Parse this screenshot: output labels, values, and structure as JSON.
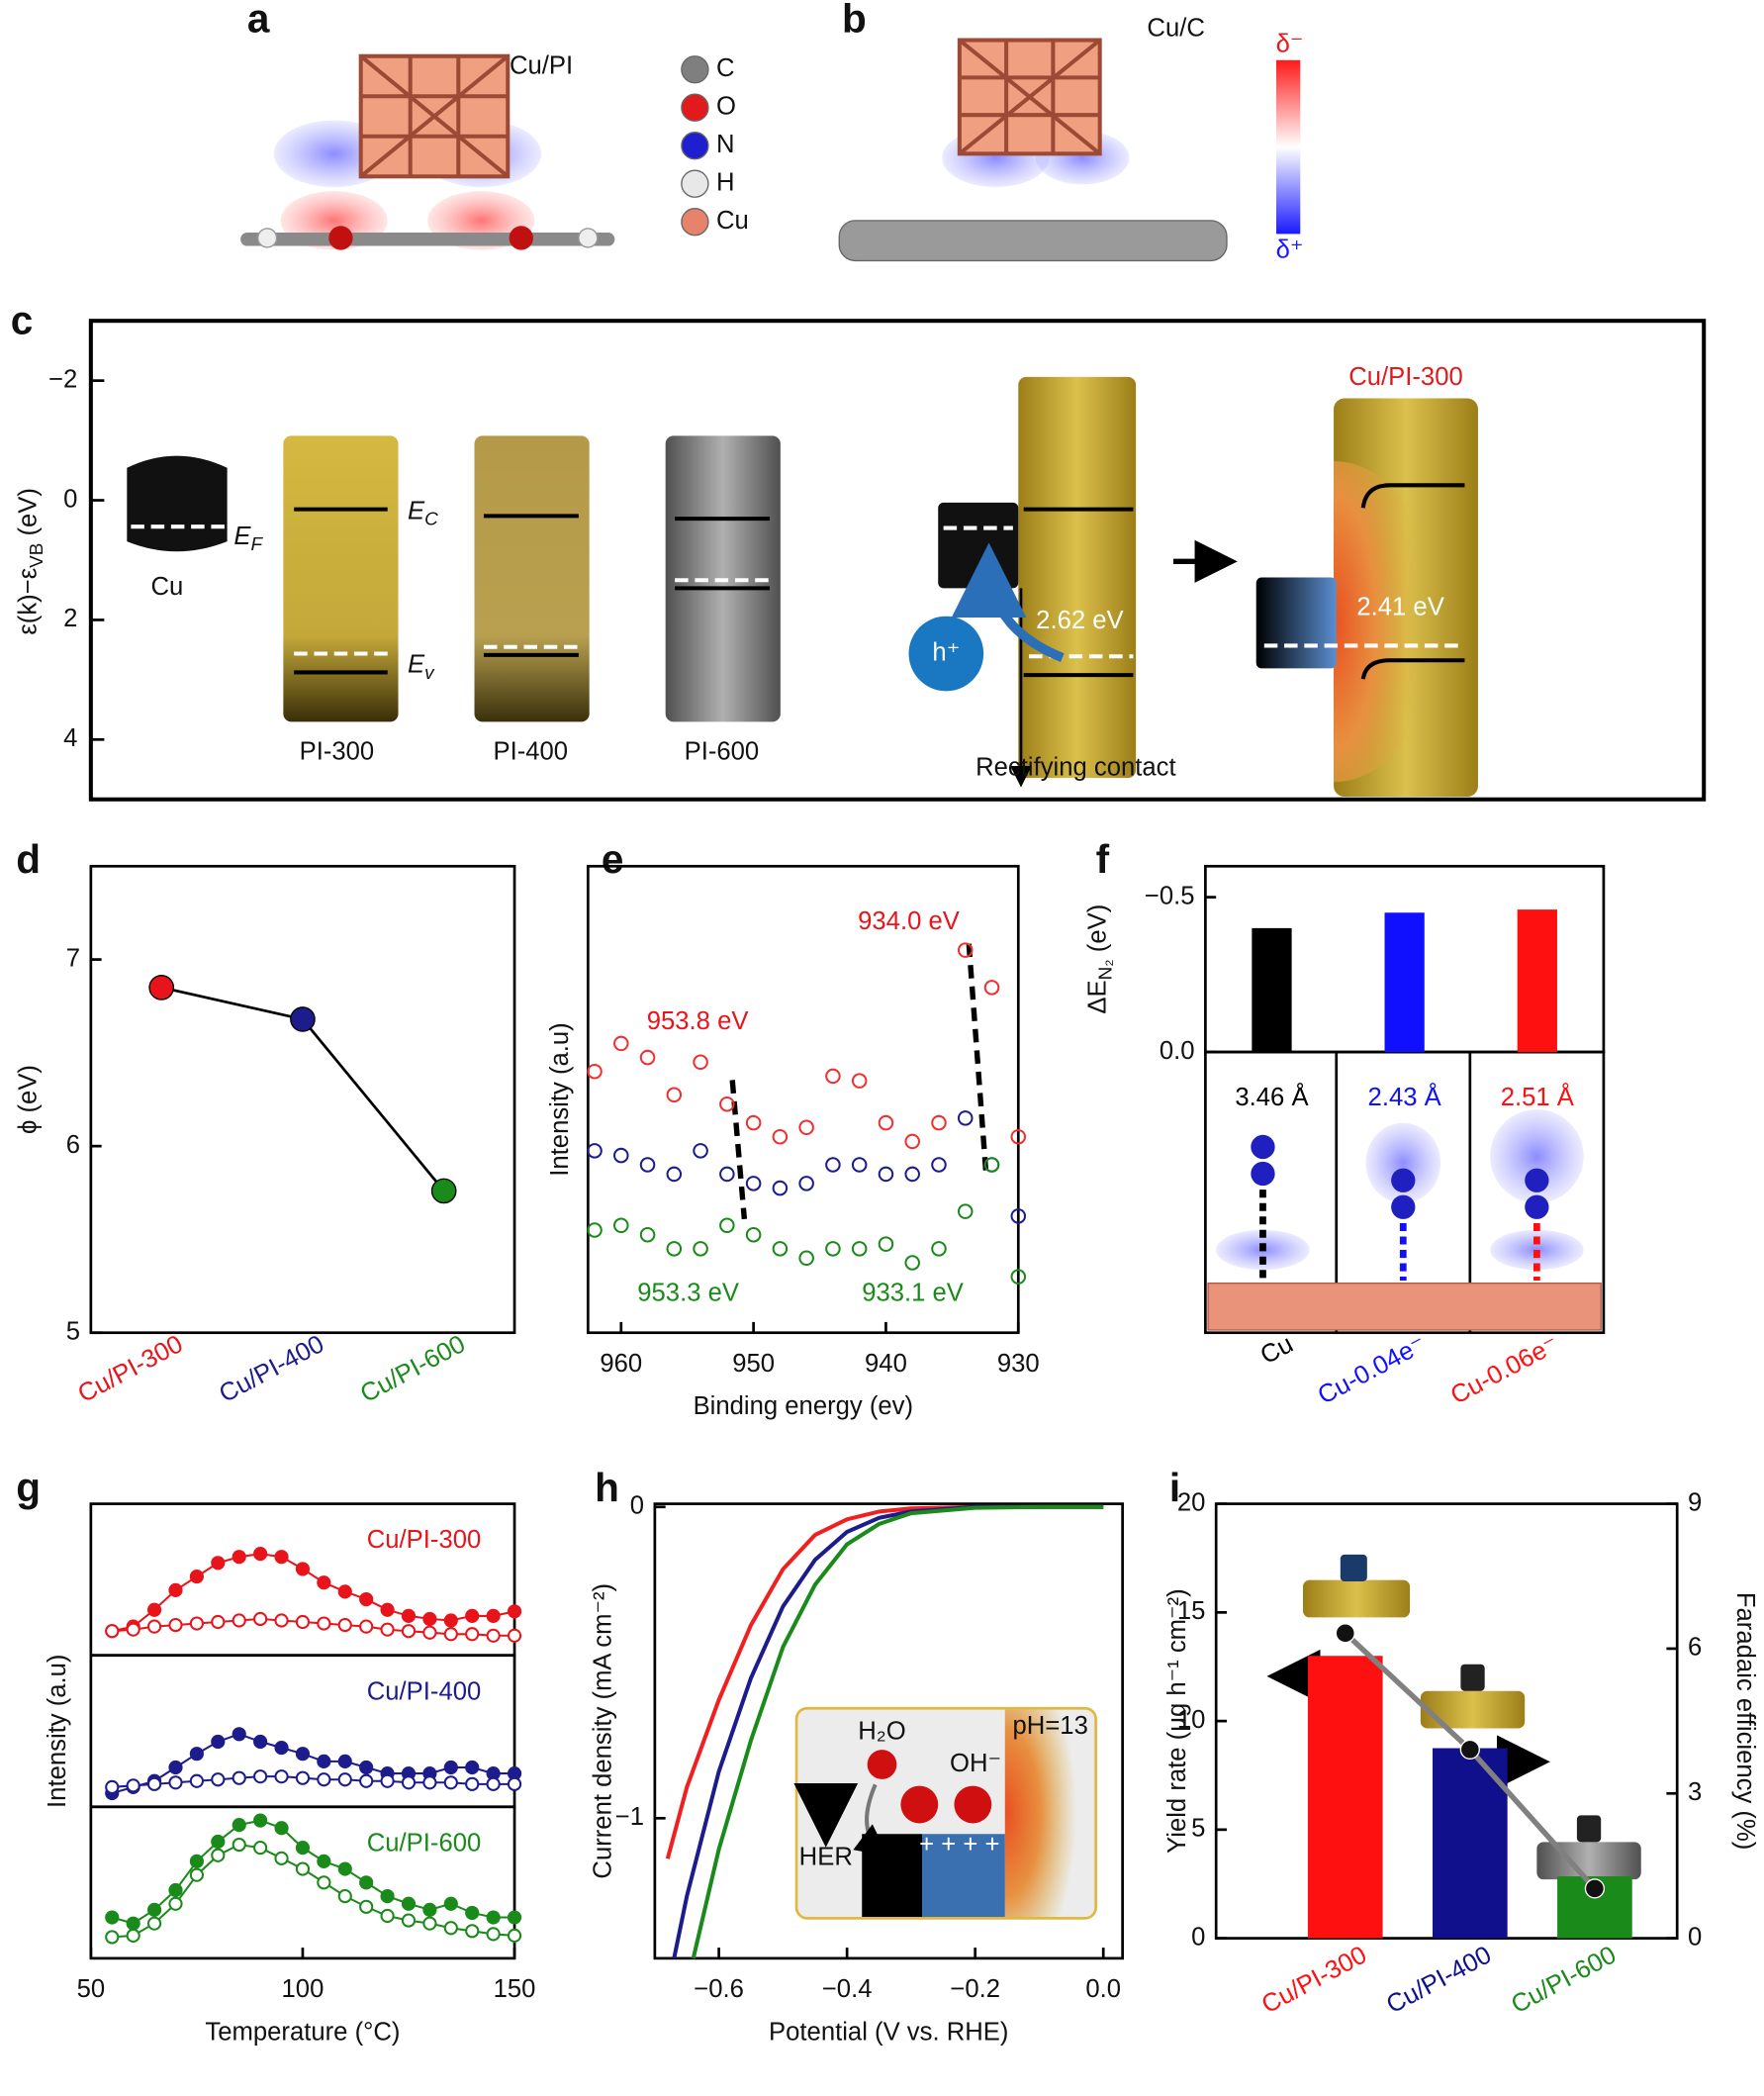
{
  "figure_a": {
    "panel": "a",
    "title": "Cu/PI",
    "legend": [
      {
        "name": "C",
        "color": "#7f7f7f"
      },
      {
        "name": "O",
        "color": "#e31a1c"
      },
      {
        "name": "N",
        "color": "#1f1fd0"
      },
      {
        "name": "H",
        "color": "#e8e8e8"
      },
      {
        "name": "Cu",
        "color": "#e8836b"
      }
    ]
  },
  "figure_b": {
    "panel": "b",
    "title": "Cu/C",
    "scale": [
      "δ⁻",
      "δ⁺"
    ]
  },
  "figure_c": {
    "panel": "c",
    "ylabel": {
      "main": "ε(k)−ε",
      "sub": "VB",
      "unit": " (eV)"
    },
    "ylim": [
      5,
      -3
    ],
    "yticks": [
      {
        "value": -2,
        "label": "−2"
      },
      0,
      2,
      4
    ],
    "metal": "Cu",
    "fermi": {
      "main": "E",
      "sub": "F"
    },
    "conduction": {
      "main": "E",
      "sub": "C"
    },
    "valence": {
      "main": "E",
      "sub": "v"
    },
    "materials": [
      "PI-300",
      "PI-400",
      "PI-600"
    ],
    "hole": "h⁺",
    "gap_before": "2.62 eV",
    "contact": "Rectifying contact",
    "product": "Cu/PI-300",
    "gap_after": "2.41 eV"
  },
  "chart_data": [
    {
      "panel": "d",
      "type": "line",
      "categories": [
        "Cu/PI-300",
        "Cu/PI-400",
        "Cu/PI-600"
      ],
      "colors": [
        "#e8141b",
        "#1c1c8c",
        "#1a8a1a"
      ],
      "values": [
        6.85,
        6.68,
        5.76
      ],
      "ylabel": "ϕ (eV)",
      "ylim": [
        5,
        7.5
      ],
      "yticks": [
        5,
        6,
        7
      ]
    },
    {
      "panel": "e",
      "type": "scatter",
      "x": [
        962,
        960,
        958,
        956,
        954,
        952,
        950,
        948,
        946,
        944,
        942,
        940,
        938,
        936,
        934,
        932,
        930
      ],
      "xlim": [
        962.5,
        930
      ],
      "xticks": [
        960,
        950,
        940,
        930
      ],
      "xlabel": "Binding energy (ev)",
      "ylabel": "Intensity (a.u)",
      "ylim": [
        0,
        100
      ],
      "series": [
        {
          "color": "#f03030",
          "values": [
            56,
            62,
            59,
            51,
            58,
            49,
            45,
            42,
            44,
            55,
            54,
            45,
            41,
            45,
            82,
            74,
            42
          ]
        },
        {
          "color": "#1c1c8c",
          "values": [
            39,
            38,
            36,
            34,
            39,
            34,
            32,
            31,
            32,
            36,
            36,
            34,
            34,
            36,
            46,
            36,
            25
          ]
        },
        {
          "color": "#1a8a1a",
          "values": [
            22,
            23,
            21,
            18,
            18,
            23,
            21,
            18,
            16,
            18,
            18,
            19,
            15,
            18,
            26,
            36,
            12
          ]
        }
      ],
      "annotations": [
        {
          "text": "953.8 eV",
          "color": "#e8141b"
        },
        {
          "text": "934.0 eV",
          "color": "#e8141b"
        },
        {
          "text": "953.3 eV",
          "color": "#1a8a1a"
        },
        {
          "text": "933.1 eV",
          "color": "#1a8a1a"
        }
      ]
    },
    {
      "panel": "f",
      "type": "bar",
      "categories": [
        "Cu",
        "Cu-0.04e⁻",
        "Cu-0.06e⁻"
      ],
      "colors": [
        "#000000",
        "#1010ff",
        "#ff1010"
      ],
      "values": [
        -0.4,
        -0.45,
        -0.46
      ],
      "ylabel": {
        "main": "ΔE",
        "sub": "N₂",
        "unit": " (eV)"
      },
      "ylim": [
        0,
        -0.6
      ],
      "yticks": [
        {
          "value": -0.5,
          "label": "−0.5"
        },
        {
          "value": 0,
          "label": "0.0"
        }
      ],
      "distances": [
        "3.46 Å",
        "2.43 Å",
        "2.51 Å"
      ]
    },
    {
      "panel": "g",
      "type": "line",
      "x": [
        55,
        60,
        65,
        70,
        75,
        80,
        85,
        90,
        95,
        100,
        105,
        110,
        115,
        120,
        125,
        130,
        135,
        140,
        145,
        150
      ],
      "xlim": [
        50,
        150
      ],
      "xticks": [
        50,
        100,
        150
      ],
      "xlabel": "Temperature (°C)",
      "ylabel": "Intensity (a.u)",
      "ylim": [
        0,
        100
      ],
      "subplots": [
        {
          "label": "Cu/PI-300",
          "color": "#e8141b",
          "series": [
            {
              "filled": true,
              "values": [
                16,
                19,
                30,
                43,
                52,
                61,
                65,
                67,
                65,
                57,
                48,
                42,
                37,
                30,
                26,
                24,
                23,
                26,
                26,
                29
              ]
            },
            {
              "filled": false,
              "values": [
                16,
                17,
                19,
                20,
                21,
                22,
                23,
                24,
                23,
                22,
                21,
                20,
                19,
                17,
                16,
                15,
                14,
                14,
                13,
                13
              ]
            }
          ]
        },
        {
          "label": "Cu/PI-400",
          "color": "#1c1c8c",
          "series": [
            {
              "filled": true,
              "values": [
                9,
                13,
                17,
                26,
                35,
                43,
                48,
                43,
                39,
                35,
                30,
                30,
                26,
                22,
                22,
                22,
                26,
                26,
                22,
                22
              ]
            },
            {
              "filled": false,
              "values": [
                13,
                14,
                15,
                16,
                17,
                18,
                19,
                20,
                20,
                19,
                18,
                18,
                17,
                17,
                16,
                16,
                16,
                15,
                15,
                15
              ]
            }
          ]
        },
        {
          "label": "Cu/PI-600",
          "color": "#1a8a1a",
          "series": [
            {
              "filled": true,
              "values": [
                27,
                23,
                32,
                45,
                64,
                77,
                88,
                91,
                86,
                73,
                64,
                59,
                50,
                41,
                36,
                32,
                36,
                30,
                27,
                27
              ]
            },
            {
              "filled": false,
              "values": [
                14,
                15,
                23,
                36,
                55,
                68,
                75,
                73,
                66,
                59,
                50,
                41,
                34,
                28,
                25,
                23,
                20,
                18,
                16,
                15
              ]
            }
          ]
        }
      ]
    },
    {
      "panel": "h",
      "type": "line",
      "xlim": [
        -0.7,
        0.03
      ],
      "xticks": [
        {
          "value": -0.6,
          "label": "−0.6"
        },
        {
          "value": -0.4,
          "label": "−0.4"
        },
        {
          "value": -0.2,
          "label": "−0.2"
        },
        {
          "value": 0,
          "label": "0.0"
        }
      ],
      "ylim": [
        -1.45,
        0.01
      ],
      "yticks": [
        {
          "value": -1,
          "label": "−1"
        },
        0
      ],
      "xlabel": "Potential (V vs. RHE)",
      "ylabel": "Current density (mA cm⁻²)",
      "series": [
        {
          "color": "#f02020",
          "x": [
            -0.68,
            -0.65,
            -0.6,
            -0.55,
            -0.5,
            -0.45,
            -0.4,
            -0.35,
            -0.3,
            -0.2,
            -0.1,
            0
          ],
          "values": [
            -1.13,
            -0.9,
            -0.62,
            -0.38,
            -0.2,
            -0.09,
            -0.04,
            -0.015,
            -0.005,
            0,
            0,
            0
          ]
        },
        {
          "color": "#1c1c8c",
          "x": [
            -0.67,
            -0.65,
            -0.6,
            -0.55,
            -0.5,
            -0.45,
            -0.4,
            -0.35,
            -0.3,
            -0.2,
            -0.1,
            0
          ],
          "values": [
            -1.45,
            -1.25,
            -0.85,
            -0.55,
            -0.32,
            -0.17,
            -0.08,
            -0.035,
            -0.015,
            0,
            0,
            0
          ]
        },
        {
          "color": "#1a8a1a",
          "x": [
            -0.64,
            -0.6,
            -0.55,
            -0.5,
            -0.45,
            -0.4,
            -0.35,
            -0.3,
            -0.2,
            -0.1,
            0
          ],
          "values": [
            -1.45,
            -1.1,
            -0.75,
            -0.45,
            -0.25,
            -0.12,
            -0.055,
            -0.02,
            -0.003,
            0,
            0
          ]
        }
      ],
      "inset": {
        "water": "H₂O",
        "hydroxide": "OH⁻",
        "ph": "pH=13",
        "her": "HER",
        "charge": "+ + + +"
      }
    },
    {
      "panel": "i",
      "type": "bar",
      "categories": [
        "Cu/PI-300",
        "Cu/PI-400",
        "Cu/PI-600"
      ],
      "colors": [
        "#ff1010",
        "#10108c",
        "#1a8a1a"
      ],
      "values": [
        13.0,
        8.75,
        2.85
      ],
      "ylabel": "Yield rate (μg h⁻¹ cm⁻²)",
      "ylim": [
        0,
        20
      ],
      "yticks": [
        0,
        5,
        10,
        15,
        20
      ],
      "y2label": "Faradaic efficiency (%)",
      "y2lim": [
        0,
        9
      ],
      "y2ticks": [
        0,
        3,
        6,
        9
      ],
      "series": [
        {
          "axis": "y2",
          "color": "#808080",
          "values": [
            6.32,
            3.91,
            1.03
          ]
        }
      ]
    }
  ]
}
